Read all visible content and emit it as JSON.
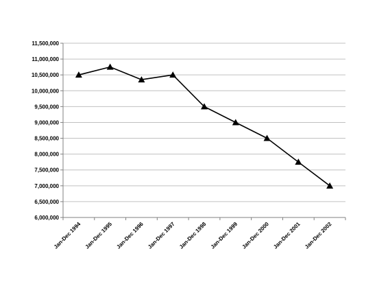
{
  "chart_data": {
    "type": "line",
    "title": "",
    "xlabel": "",
    "ylabel": "",
    "categories": [
      "Jan-Dec 1994",
      "Jan-Dec 1995",
      "Jan-Dec 1996",
      "Jan-Dec 1997",
      "Jan-Dec 1998",
      "Jan-Dec 1999",
      "Jan-Dec 2000",
      "Jan-Dec 2001",
      "Jan-Dec 2002"
    ],
    "series": [
      {
        "values": [
          10500000,
          10750000,
          10350000,
          10500000,
          9500000,
          9000000,
          8500000,
          7750000,
          7000000
        ],
        "marker": "triangle",
        "color": "#000000"
      }
    ],
    "ylim": [
      6000000,
      11500000
    ],
    "y_ticks": [
      "6,000,000",
      "6,500,000",
      "7,000,000",
      "7,500,000",
      "8,000,000",
      "8,500,000",
      "9,000,000",
      "9,500,000",
      "10,000,000",
      "10,500,000",
      "11,000,000",
      "11,500,000"
    ],
    "grid": true,
    "legend": "none",
    "colors": {
      "line": "#000000",
      "grid": "#c0c0c0",
      "axis": "#808080"
    }
  }
}
